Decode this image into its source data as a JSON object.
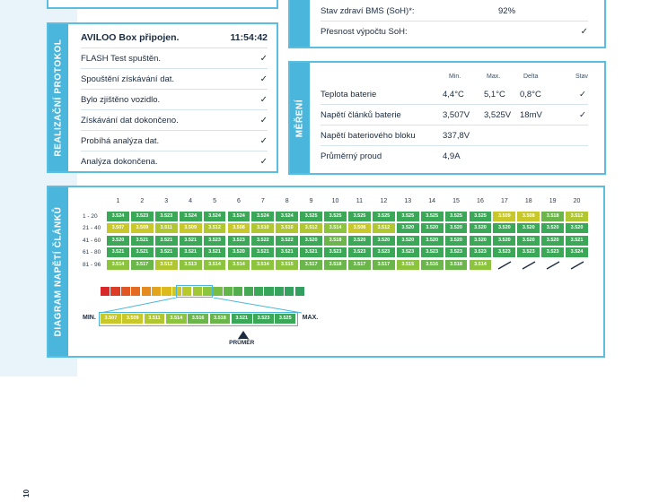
{
  "protocol": {
    "tab": "REALIZAČNÍ PROTOKOL",
    "header_left": "AVILOO Box připojen.",
    "header_time": "11:54:42",
    "steps": [
      "FLASH Test spuštěn.",
      "Spouštění získávání dat.",
      "Bylo zjištěno vozidlo.",
      "Získávání dat dokončeno.",
      "Probíhá analýza dat.",
      "Analýza dokončena."
    ],
    "check": "✓"
  },
  "soh": {
    "rows": [
      {
        "label": "Stav zdraví BMS (SoH)*:",
        "value": "92%"
      },
      {
        "label": "Přesnost výpočtu SoH:",
        "value": "✓"
      }
    ]
  },
  "measure": {
    "tab": "MĚŘENÍ",
    "headers": {
      "min": "Min.",
      "max": "Max.",
      "delta": "Delta",
      "state": "Stav"
    },
    "rows": [
      {
        "label": "Teplota baterie",
        "min": "4,4°C",
        "max": "5,1°C",
        "delta": "0,8°C",
        "state": "✓"
      },
      {
        "label": "Napětí článků baterie",
        "min": "3,507V",
        "max": "3,525V",
        "delta": "18mV",
        "state": "✓"
      },
      {
        "label": "Napětí bateriového bloku",
        "min": "337,8V",
        "max": "",
        "delta": "",
        "state": ""
      },
      {
        "label": "Průměrný proud",
        "min": "4,9A",
        "max": "",
        "delta": "",
        "state": ""
      }
    ]
  },
  "diagram": {
    "tab": "DIAGRAM NAPĚTÍ ČLÁNKŮ",
    "columns": [
      "1",
      "2",
      "3",
      "4",
      "5",
      "6",
      "7",
      "8",
      "9",
      "10",
      "11",
      "12",
      "13",
      "14",
      "15",
      "16",
      "17",
      "18",
      "19",
      "20"
    ],
    "row_labels": [
      "1 - 20",
      "21 - 40",
      "41 - 60",
      "61 - 80",
      "81 - 96"
    ],
    "rows": [
      [
        "3.524",
        "3.523",
        "3.523",
        "3.524",
        "3.524",
        "3.524",
        "3.524",
        "3.524",
        "3.525",
        "3.525",
        "3.525",
        "3.525",
        "3.525",
        "3.525",
        "3.525",
        "3.525",
        "3.509",
        "3.508",
        "3.518",
        "3.512"
      ],
      [
        "3.507",
        "3.509",
        "3.511",
        "3.509",
        "3.512",
        "3.508",
        "3.510",
        "3.510",
        "3.512",
        "3.514",
        "3.508",
        "3.512",
        "3.520",
        "3.520",
        "3.520",
        "3.520",
        "3.520",
        "3.520",
        "3.520",
        "3.520"
      ],
      [
        "3.520",
        "3.521",
        "3.521",
        "3.521",
        "3.523",
        "3.523",
        "3.522",
        "3.522",
        "3.520",
        "3.518",
        "3.520",
        "3.520",
        "3.520",
        "3.520",
        "3.520",
        "3.520",
        "3.520",
        "3.520",
        "3.520",
        "3.521"
      ],
      [
        "3.521",
        "3.521",
        "3.521",
        "3.521",
        "3.521",
        "3.520",
        "3.521",
        "3.521",
        "3.521",
        "3.523",
        "3.523",
        "3.523",
        "3.523",
        "3.523",
        "3.523",
        "3.523",
        "3.523",
        "3.523",
        "3.523",
        "3.524"
      ],
      [
        "3.514",
        "3.517",
        "3.512",
        "3.513",
        "3.514",
        "3.514",
        "3.514",
        "3.515",
        "3.517",
        "3.518",
        "3.517",
        "3.517",
        "3.515",
        "3.516",
        "3.518",
        "3.514",
        "",
        "",
        "",
        ""
      ]
    ],
    "legend_min": "MIN.",
    "legend_max": "MAX.",
    "legend_values": [
      "3.507",
      "3.509",
      "3.511",
      "3.514",
      "3.516",
      "3.518",
      "3.521",
      "3.523",
      "3.525"
    ],
    "average_label": "PRŮMĚR"
  },
  "page_number": "10",
  "colors": {
    "accent": "#4bb6dc",
    "green": "#3aa857",
    "lime": "#8cc43e",
    "yellow": "#c9c82a",
    "orange": "#e58a1e",
    "red": "#d8282a"
  }
}
